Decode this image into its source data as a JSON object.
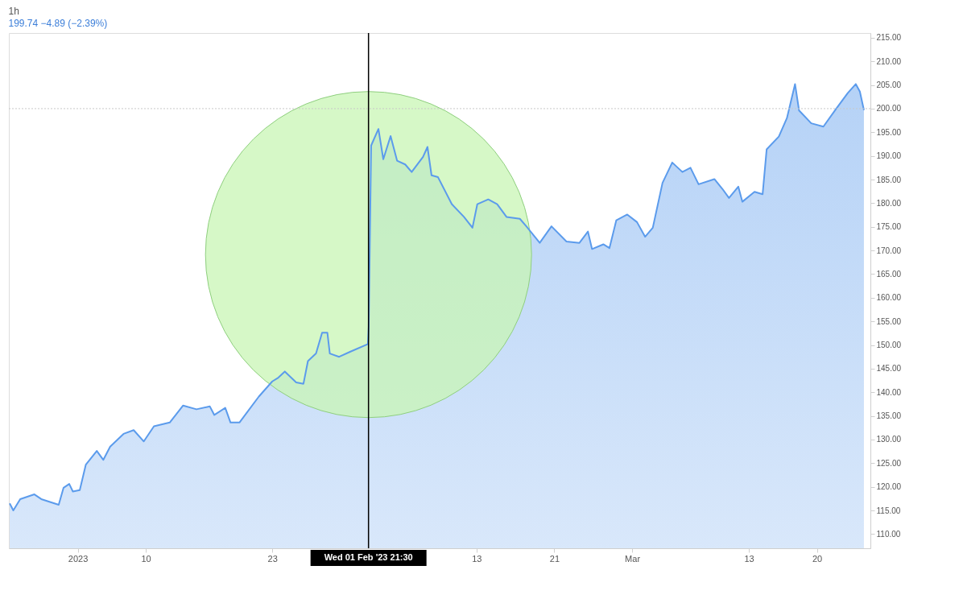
{
  "chart_data": {
    "type": "area",
    "title": "1h",
    "subtitle": "199.74 −4.89 (−2.39%)",
    "x": [
      "2022-12-27T00:00",
      "2022-12-27T09:00",
      "2022-12-28T02:00",
      "2022-12-29T13:00",
      "2022-12-30T06:00",
      "2023-01-01T01:00",
      "2023-01-01T13:00",
      "2023-01-02T03:00",
      "2023-01-02T12:00",
      "2023-01-03T05:00",
      "2023-01-03T20:00",
      "2023-01-04T23:00",
      "2023-01-05T15:00",
      "2023-01-06T08:00",
      "2023-01-07T17:00",
      "2023-01-08T18:00",
      "2023-01-09T19:00",
      "2023-01-10T20:00",
      "2023-01-12T11:00",
      "2023-01-13T20:00",
      "2023-01-15T05:00",
      "2023-01-16T14:00",
      "2023-01-17T01:00",
      "2023-01-18T04:00",
      "2023-01-18T17:00",
      "2023-01-19T15:00",
      "2023-01-21T15:00",
      "2023-01-23T00:00",
      "2023-01-23T15:00",
      "2023-01-24T07:00",
      "2023-01-25T11:00",
      "2023-01-26T05:00",
      "2023-01-26T16:00",
      "2023-01-27T12:00",
      "2023-01-28T03:00",
      "2023-01-28T16:00",
      "2023-01-28T22:00",
      "2023-01-29T21:00",
      "2023-01-31T01:00",
      "2023-02-01T20:00",
      "2023-02-01T22:00",
      "2023-02-02T04:00",
      "2023-02-02T22:00",
      "2023-02-03T10:00",
      "2023-02-04T04:00",
      "2023-02-04T20:00",
      "2023-02-05T16:00",
      "2023-02-06T08:00",
      "2023-02-07T12:00",
      "2023-02-07T23:00",
      "2023-02-08T09:00",
      "2023-02-09T01:00",
      "2023-02-10T11:00",
      "2023-02-11T17:00",
      "2023-02-12T14:00",
      "2023-02-13T02:00",
      "2023-02-14T05:00",
      "2023-02-15T03:00",
      "2023-02-16T02:00",
      "2023-02-17T11:00",
      "2023-02-18T03:00",
      "2023-02-19T12:00",
      "2023-02-20T17:00",
      "2023-02-22T06:00",
      "2023-02-23T14:00",
      "2023-02-24T11:00",
      "2023-02-24T21:00",
      "2023-02-26T01:00",
      "2023-02-26T16:00",
      "2023-02-27T09:00",
      "2023-02-28T12:00",
      "2023-03-01T12:00",
      "2023-03-02T08:00",
      "2023-03-03T03:00",
      "2023-03-04T03:00",
      "2023-03-05T03:00",
      "2023-03-06T04:00",
      "2023-03-07T00:00",
      "2023-03-07T20:00",
      "2023-03-09T11:00",
      "2023-03-10T07:00",
      "2023-03-10T23:00",
      "2023-03-11T22:00",
      "2023-03-12T08:00",
      "2023-03-13T14:00",
      "2023-03-14T10:00",
      "2023-03-14T20:00",
      "2023-03-16T02:00",
      "2023-03-16T22:00",
      "2023-03-17T18:00",
      "2023-03-18T04:00",
      "2023-03-19T10:00",
      "2023-03-20T16:00",
      "2023-03-21T22:00",
      "2023-03-23T04:00",
      "2023-03-24T00:00",
      "2023-03-24T10:00",
      "2023-03-24T20:00"
    ],
    "series": [
      {
        "color": "#5b9bec",
        "values": [
          116.5,
          115,
          117.4,
          118.4,
          117.4,
          116.2,
          119.8,
          120.6,
          119,
          119.3,
          124.7,
          127.6,
          125.7,
          128.5,
          131.2,
          132,
          129.6,
          132.8,
          133.6,
          137.2,
          136.4,
          137,
          135.2,
          136.7,
          133.6,
          133.6,
          139.1,
          142.3,
          143.1,
          144.4,
          142.1,
          141.8,
          146.6,
          148.2,
          152.6,
          152.6,
          148.2,
          147.5,
          148.6,
          150.2,
          153.9,
          192.2,
          195.7,
          189.3,
          194.2,
          189,
          188.2,
          186.6,
          189.8,
          191.9,
          185.9,
          185.5,
          179.8,
          177.1,
          174.8,
          179.8,
          180.8,
          179.8,
          177.1,
          176.7,
          175.1,
          171.6,
          175.1,
          171.9,
          171.6,
          174,
          170.3,
          171.3,
          170.5,
          176.4,
          177.6,
          176,
          172.9,
          174.8,
          184.3,
          188.6,
          186.6,
          187.5,
          184,
          185.1,
          183,
          181.1,
          183.5,
          180.3,
          182.4,
          181.9,
          191.4,
          194.1,
          198,
          205.2,
          199.6,
          196.9,
          196.2,
          199.8,
          203.3,
          205.2,
          203.6,
          199.7
        ]
      }
    ],
    "xlim": [
      "2022-12-26T22:00",
      "2023-03-25T12:00"
    ],
    "xticks": [
      {
        "value": "2023-01-03",
        "label": "2023"
      },
      {
        "value": "2023-01-10",
        "label": "10"
      },
      {
        "value": "2023-01-23",
        "label": "23"
      },
      {
        "value": "2023-02-13",
        "label": "13"
      },
      {
        "value": "2023-02-21",
        "label": "21"
      },
      {
        "value": "2023-03-01",
        "label": "Mar"
      },
      {
        "value": "2023-03-13",
        "label": "13"
      },
      {
        "value": "2023-03-20",
        "label": "20"
      }
    ],
    "ylim": [
      107,
      216
    ],
    "yticks": [
      {
        "value": 110,
        "label": "110.00"
      },
      {
        "value": 115,
        "label": "115.00"
      },
      {
        "value": 120,
        "label": "120.00"
      },
      {
        "value": 125,
        "label": "125.00"
      },
      {
        "value": 130,
        "label": "130.00"
      },
      {
        "value": 135,
        "label": "135.00"
      },
      {
        "value": 140,
        "label": "140.00"
      },
      {
        "value": 145,
        "label": "145.00"
      },
      {
        "value": 150,
        "label": "150.00"
      },
      {
        "value": 155,
        "label": "155.00"
      },
      {
        "value": 160,
        "label": "160.00"
      },
      {
        "value": 165,
        "label": "165.00"
      },
      {
        "value": 170,
        "label": "170.00"
      },
      {
        "value": 175,
        "label": "175.00"
      },
      {
        "value": 180,
        "label": "180.00"
      },
      {
        "value": 185,
        "label": "185.00"
      },
      {
        "value": 190,
        "label": "190.00"
      },
      {
        "value": 195,
        "label": "195.00"
      },
      {
        "value": 200,
        "label": "200.00"
      },
      {
        "value": 205,
        "label": "205.00"
      },
      {
        "value": 210,
        "label": "210.00"
      },
      {
        "value": 215,
        "label": "215.00"
      }
    ],
    "ref_lines": [
      {
        "axis": "x",
        "value": "2023-02-01T21:30",
        "label": "Wed 01 Feb '23  21:30",
        "color": "#000000",
        "line_style": "solid"
      },
      {
        "axis": "y",
        "value": 200,
        "color": "#c8c8c8",
        "line_style": "dotted"
      }
    ],
    "grid": false
  }
}
